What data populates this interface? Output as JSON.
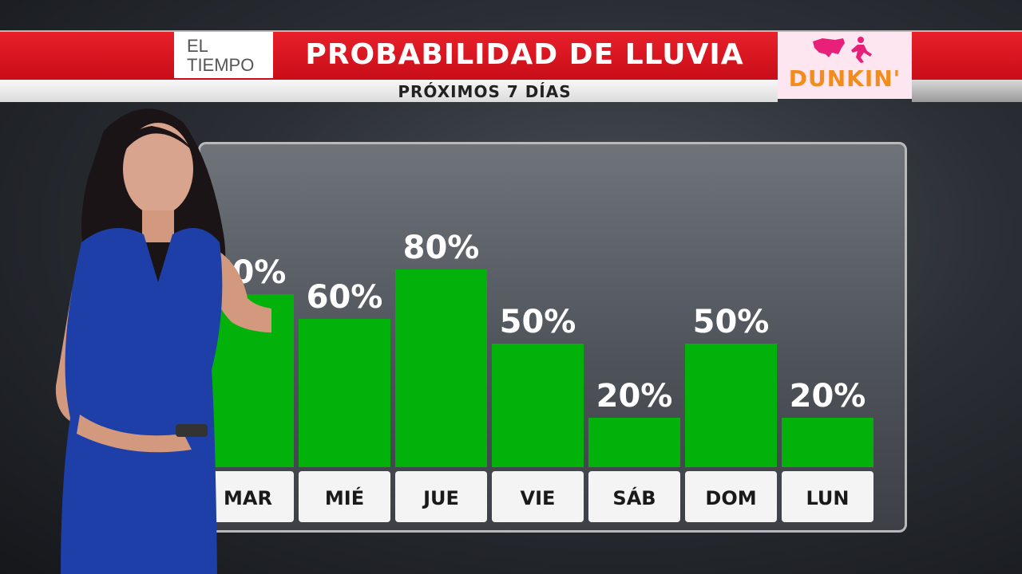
{
  "header": {
    "brand": "EL TIEMPO",
    "title": "PROBABILIDAD DE LLUVIA",
    "subtitle": "PRÓXIMOS 7 DÍAS",
    "sponsor": "DUNKIN'"
  },
  "colors": {
    "banner_red": "#d8141f",
    "bar_green": "#03b10b",
    "sponsor_orange": "#f28c1c",
    "sponsor_pink": "#e8207a"
  },
  "chart_data": {
    "type": "bar",
    "categories": [
      "MAR",
      "MIÉ",
      "JUE",
      "VIE",
      "SÁB",
      "DOM",
      "LUN"
    ],
    "values": [
      70,
      60,
      80,
      50,
      20,
      50,
      20
    ],
    "value_labels": [
      "70%",
      "60%",
      "80%",
      "50%",
      "20%",
      "50%",
      "20%"
    ],
    "title": "PROBABILIDAD DE LLUVIA",
    "subtitle": "PRÓXIMOS 7 DÍAS",
    "ylim": [
      0,
      100
    ],
    "grid": false,
    "legend": "none"
  }
}
